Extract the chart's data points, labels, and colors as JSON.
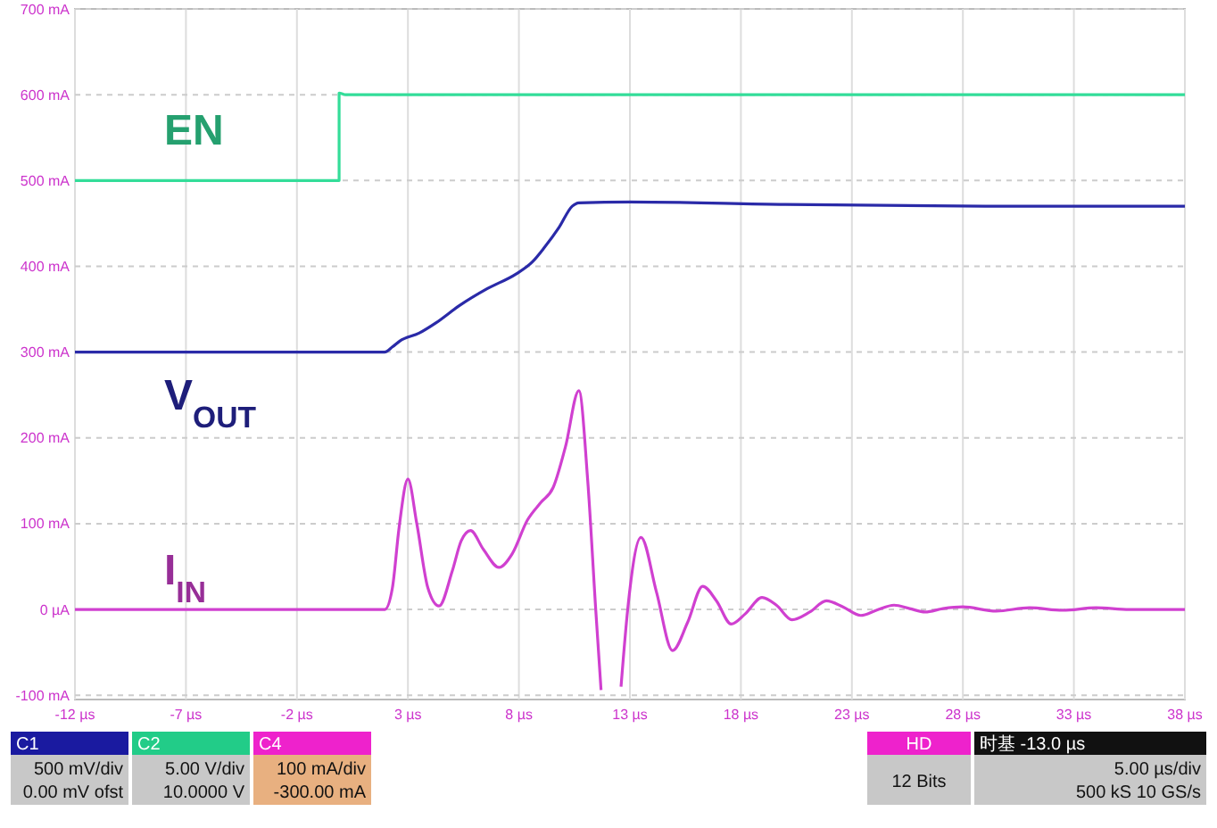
{
  "chart_data": {
    "type": "line",
    "ylim": [
      -105,
      700
    ],
    "xlim": [
      -12,
      38
    ],
    "yticks": [
      {
        "value": -100,
        "label": "-100 mA"
      },
      {
        "value": 0,
        "label": "0 µA"
      },
      {
        "value": 100,
        "label": "100 mA"
      },
      {
        "value": 200,
        "label": "200 mA"
      },
      {
        "value": 300,
        "label": "300 mA"
      },
      {
        "value": 400,
        "label": "400 mA"
      },
      {
        "value": 500,
        "label": "500 mA"
      },
      {
        "value": 600,
        "label": "600 mA"
      },
      {
        "value": 700,
        "label": "700 mA"
      }
    ],
    "xticks": [
      {
        "value": -12,
        "label": "-12 µs"
      },
      {
        "value": -7,
        "label": "-7 µs"
      },
      {
        "value": -2,
        "label": "-2 µs"
      },
      {
        "value": 3,
        "label": "3 µs"
      },
      {
        "value": 8,
        "label": "8 µs"
      },
      {
        "value": 13,
        "label": "13 µs"
      },
      {
        "value": 18,
        "label": "18 µs"
      },
      {
        "value": 23,
        "label": "23 µs"
      },
      {
        "value": 28,
        "label": "28 µs"
      },
      {
        "value": 33,
        "label": "33 µs"
      },
      {
        "value": 38,
        "label": "38 µs"
      }
    ],
    "grid": true,
    "marker": "none",
    "line_style": "solid",
    "series": [
      {
        "name": "EN",
        "color": "#33dd99",
        "x": [
          -12,
          -0.1,
          -0.1,
          0.2,
          38
        ],
        "values": [
          500,
          500,
          602,
          600,
          600
        ]
      },
      {
        "name": "V$_{OUT}$",
        "color": "#2a2aa8",
        "x": [
          -12,
          1.95,
          2.3,
          2.64,
          3.5,
          4.26,
          5.31,
          6.58,
          7.87,
          8.6,
          9.15,
          9.8,
          10.4,
          10.7,
          13,
          20,
          30,
          38
        ],
        "values": [
          300,
          300,
          306,
          313,
          322,
          334,
          354,
          374,
          391,
          405,
          422,
          445,
          470,
          474,
          475,
          472,
          470,
          470
        ]
      },
      {
        "name": "I$_{IN}$",
        "color": "#d040d0",
        "x": [
          -12,
          1.96,
          2.3,
          2.6,
          3.0,
          3.4,
          3.9,
          4.4,
          5.0,
          5.4,
          5.82,
          6.4,
          7.1,
          7.7,
          8.38,
          9.0,
          9.54,
          10.1,
          10.7,
          11.1,
          11.46,
          11.7,
          12.1,
          12.6,
          12.9,
          13.5,
          14.2,
          14.92,
          15.6,
          16.28,
          16.9,
          17.56,
          18.2,
          18.95,
          19.6,
          20.3,
          21.1,
          21.85,
          22.6,
          23.4,
          24.1,
          24.9,
          25.6,
          26.3,
          27.1,
          28,
          29.5,
          31,
          32.5,
          34,
          35.5,
          38
        ],
        "values": [
          0,
          0,
          25,
          95,
          152,
          100,
          25,
          4,
          45,
          80,
          92,
          70,
          49,
          65,
          104,
          125,
          142,
          190,
          255,
          150,
          0,
          -94,
          null,
          -90,
          0,
          84,
          20,
          -48,
          -15,
          27,
          10,
          -17,
          -5,
          14,
          5,
          -12,
          -3,
          10,
          3,
          -7,
          -1,
          5,
          1,
          -3,
          1,
          3,
          -2,
          2,
          -1,
          2,
          0,
          0
        ]
      }
    ],
    "annotations": [
      "C1",
      "500 mV/div",
      "0.00 mV ofst",
      "C2",
      "5.00 V/div",
      "10.0000 V",
      "C4",
      "100 mA/div",
      "-300.00 mA",
      "HD",
      "12 Bits",
      "时基  -13.0 µs",
      "5.00 µs/div",
      "500 kS  10 GS/s"
    ]
  }
}
